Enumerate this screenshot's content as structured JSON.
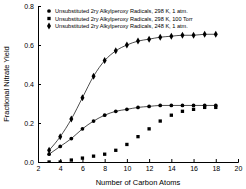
{
  "chart_data": {
    "type": "scatter",
    "x_label": "Number of Carbon Atoms",
    "y_label": "Fractional Nitrate Yield",
    "x": [
      3,
      4,
      5,
      6,
      7,
      8,
      9,
      10,
      11,
      12,
      13,
      14,
      15,
      16,
      17,
      18
    ],
    "series": [
      {
        "name": "Unsubstituted 2ry Alkylperoxy Radicals, 298 K, 1 atm.",
        "color": "#000000",
        "marker": "circle",
        "line_style": "solid",
        "values": [
          0.04,
          0.08,
          0.12,
          0.17,
          0.21,
          0.24,
          0.26,
          0.27,
          0.28,
          0.285,
          0.29,
          0.29,
          0.29,
          0.29,
          0.29,
          0.29
        ]
      },
      {
        "name": "Unsubstituted 2ry Alkylperoxy Radicals, 298 K, 100 Torr",
        "color": "#000000",
        "marker": "square",
        "line_style": "none",
        "values": [
          0.0,
          0.0,
          0.01,
          0.02,
          0.03,
          0.04,
          0.06,
          0.09,
          0.13,
          0.17,
          0.21,
          0.24,
          0.26,
          0.27,
          0.28,
          0.28
        ]
      },
      {
        "name": "Unsubstituted 2ry Alkylperoxy Radicals, 248 K, 1 atm.",
        "color": "#000000",
        "marker": "diamond",
        "line_style": "solid",
        "values": [
          0.06,
          0.13,
          0.22,
          0.33,
          0.44,
          0.52,
          0.57,
          0.6,
          0.62,
          0.63,
          0.64,
          0.645,
          0.65,
          0.65,
          0.655,
          0.655
        ]
      }
    ],
    "xlim": [
      2,
      20
    ],
    "xticks": [
      2,
      4,
      6,
      8,
      10,
      12,
      14,
      16,
      18,
      20
    ],
    "ylim": [
      0,
      0.8
    ],
    "yticks": [
      {
        "value": 0,
        "label": "0.0"
      },
      0.2,
      0.4,
      0.6,
      0.8
    ],
    "legend": "top-left",
    "grid": false
  }
}
